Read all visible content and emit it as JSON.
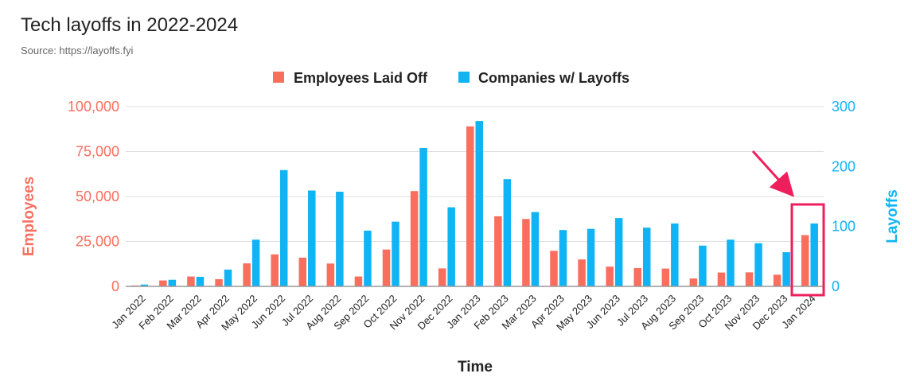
{
  "title": "Tech layoffs in 2022-2024",
  "subtitle": "Source: https://layoffs.fyi",
  "colors": {
    "employees": "#FA6E5E",
    "companies": "#10B4F5",
    "highlight": "#EE1F5C",
    "grid": "#DDDDDD",
    "axis": "#999999",
    "text": "#222222"
  },
  "chart_data": {
    "type": "bar",
    "title": "Tech layoffs in 2022-2024",
    "subtitle": "Source: https://layoffs.fyi",
    "xlabel": "Time",
    "ylabel_left": "Employees",
    "ylabel_right": "Layoffs",
    "grid": true,
    "legend_position": "top-center",
    "categories": [
      "Jan 2022",
      "Feb 2022",
      "Mar 2022",
      "Apr 2022",
      "May 2022",
      "Jun 2022",
      "Jul 2022",
      "Aug 2022",
      "Sep 2022",
      "Oct 2022",
      "Nov 2022",
      "Dec 2022",
      "Jan 2023",
      "Feb 2023",
      "Mar 2023",
      "Apr 2023",
      "May 2023",
      "Jun 2023",
      "Jul 2023",
      "Aug 2023",
      "Sep 2023",
      "Oct 2023",
      "Nov 2023",
      "Dec 2023",
      "Jan 2024"
    ],
    "ylim_left": [
      0,
      100000
    ],
    "ylim_right": [
      0,
      300
    ],
    "yticks_left": [
      "0",
      "25,000",
      "50,000",
      "75,000",
      "100,000"
    ],
    "yticks_right": [
      "0",
      "100",
      "200",
      "300"
    ],
    "series": [
      {
        "name": "Employees Laid Off",
        "axis": "left",
        "values": [
          500,
          3300,
          5500,
          4000,
          12800,
          17800,
          16000,
          12700,
          5500,
          20500,
          53000,
          10000,
          89000,
          39000,
          37500,
          19800,
          15000,
          11000,
          10200,
          9900,
          4400,
          7700,
          7800,
          6500,
          28500
        ]
      },
      {
        "name": "Companies w/ Layoffs",
        "axis": "right",
        "values": [
          3,
          11,
          16,
          28,
          78,
          194,
          160,
          158,
          93,
          108,
          231,
          132,
          276,
          179,
          124,
          94,
          96,
          114,
          98,
          105,
          68,
          78,
          72,
          57,
          105
        ]
      }
    ],
    "annotation": {
      "type": "highlight-box",
      "target": "Jan 2024"
    }
  }
}
